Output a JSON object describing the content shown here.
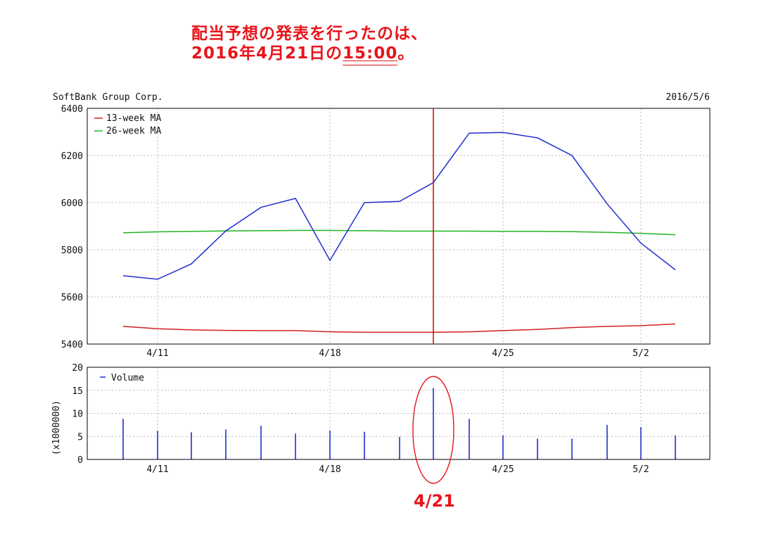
{
  "headline": {
    "line1": "配当予想の発表を行ったのは、",
    "line2_prefix": "2016年4月21日の",
    "line2_time": "15:00",
    "line2_suffix": "。"
  },
  "annotation": {
    "label": "4/21",
    "marker_date": "4/21"
  },
  "colors": {
    "price": "#1f2fd0",
    "ma13": "#d42020",
    "ma26": "#22b422",
    "volume": "#1f2fd0",
    "marker": "#d01010",
    "annotation": "#e8141b"
  },
  "chart_data": [
    {
      "type": "line",
      "title": "SoftBank Group Corp.",
      "subtitle": "2016/5/6",
      "dates": [
        "4/8",
        "4/11",
        "4/12",
        "4/13",
        "4/14",
        "4/15",
        "4/18",
        "4/19",
        "4/20",
        "4/21",
        "4/22",
        "4/25",
        "4/26",
        "4/27",
        "4/28",
        "5/2",
        "5/6"
      ],
      "xtick_labels": [
        "4/11",
        "4/18",
        "4/25",
        "5/2"
      ],
      "ylim": [
        5400,
        6400
      ],
      "yticks": [
        5400,
        5600,
        5800,
        6000,
        6200,
        6400
      ],
      "grid": true,
      "legend_position": "top-left",
      "series": [
        {
          "name": "",
          "values": [
            5690,
            5675,
            5740,
            5880,
            5980,
            6018,
            5755,
            6000,
            6005,
            6085,
            6295,
            6298,
            6275,
            6200,
            5995,
            5828,
            5715
          ]
        },
        {
          "name": "13-week MA",
          "values": [
            5475,
            5465,
            5460,
            5458,
            5457,
            5457,
            5452,
            5450,
            5450,
            5450,
            5452,
            5457,
            5462,
            5470,
            5475,
            5478,
            5485
          ]
        },
        {
          "name": "26-week MA",
          "values": [
            5872,
            5876,
            5878,
            5880,
            5881,
            5882,
            5882,
            5881,
            5879,
            5879,
            5879,
            5878,
            5878,
            5877,
            5874,
            5870,
            5864
          ]
        }
      ]
    },
    {
      "type": "bar",
      "dates": [
        "4/8",
        "4/11",
        "4/12",
        "4/13",
        "4/14",
        "4/15",
        "4/18",
        "4/19",
        "4/20",
        "4/21",
        "4/22",
        "4/25",
        "4/26",
        "4/27",
        "4/28",
        "5/2",
        "5/6"
      ],
      "xtick_labels": [
        "4/11",
        "4/18",
        "4/25",
        "5/2"
      ],
      "ylabel": "(x1000000)",
      "ylim": [
        0,
        20
      ],
      "yticks": [
        0,
        5,
        10,
        15,
        20
      ],
      "grid": true,
      "legend_position": "top-left",
      "series": [
        {
          "name": "Volume",
          "values": [
            8.8,
            6.2,
            5.9,
            6.5,
            7.3,
            5.6,
            6.3,
            6.0,
            4.9,
            15.5,
            8.8,
            5.2,
            4.5,
            4.5,
            7.5,
            7.0,
            5.2
          ]
        }
      ]
    }
  ]
}
